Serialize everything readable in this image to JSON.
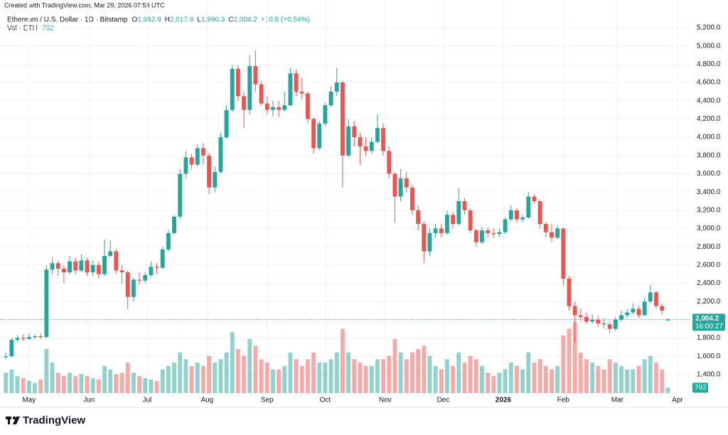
{
  "header": {
    "created": "Created with TradingView.com, Mar 29, 2026 07:59 UTC",
    "symbol": "Ethereum / U.S. Dollar · 1D · Bitstamp",
    "ohlc": [
      {
        "label": "O",
        "value": "1,992.9"
      },
      {
        "label": "H",
        "value": "2,017.9"
      },
      {
        "label": "L",
        "value": "1,990.3"
      },
      {
        "label": "C",
        "value": "2,004.2"
      }
    ],
    "change": "+10.8 (+0.54%)",
    "volume_label": "Vol · ETH"
  },
  "chart_data": {
    "type": "candlestick",
    "colors": {
      "up": "#26a69a",
      "down": "#ef5350"
    },
    "ylim": [
      1080,
      5286
    ],
    "yticks": [
      {
        "value": 1400,
        "label": "1,400.0"
      },
      {
        "value": 1600,
        "label": "1,600.0"
      },
      {
        "value": 1800,
        "label": "1,800.0"
      },
      {
        "value": 2000,
        "label": "2,000.0"
      },
      {
        "value": 2200,
        "label": "2,200.0"
      },
      {
        "value": 2400,
        "label": "2,400.0"
      },
      {
        "value": 2600,
        "label": "2,600.0"
      },
      {
        "value": 2800,
        "label": "2,800.0"
      },
      {
        "value": 3000,
        "label": "3,000.0"
      },
      {
        "value": 3200,
        "label": "3,200.0"
      },
      {
        "value": 3400,
        "label": "3,400.0"
      },
      {
        "value": 3600,
        "label": "3,600.0"
      },
      {
        "value": 3800,
        "label": "3,800.0"
      },
      {
        "value": 4000,
        "label": "4,000.0"
      },
      {
        "value": 4200,
        "label": "4,200.0"
      },
      {
        "value": 4400,
        "label": "4,400.0"
      },
      {
        "value": 4600,
        "label": "4,600.0"
      },
      {
        "value": 4800,
        "label": "4,800.0"
      },
      {
        "value": 5000,
        "label": "5,000.0"
      },
      {
        "value": 5200,
        "label": "5,200.0"
      }
    ],
    "xlim": [
      -1,
      118
    ],
    "xticks": [
      {
        "value": 4,
        "label": "May"
      },
      {
        "value": 14.33,
        "label": "Jun"
      },
      {
        "value": 24.33,
        "label": "Jul"
      },
      {
        "value": 34.67,
        "label": "Aug"
      },
      {
        "value": 45,
        "label": "Sep"
      },
      {
        "value": 55,
        "label": "Oct"
      },
      {
        "value": 65.33,
        "label": "Nov"
      },
      {
        "value": 75.33,
        "label": "Dec"
      },
      {
        "value": 85.67,
        "label": "2026",
        "bold": true
      },
      {
        "value": 96,
        "label": "Feb"
      },
      {
        "value": 105.33,
        "label": "Mar"
      },
      {
        "value": 115.67,
        "label": "Apr"
      }
    ],
    "ohlc": [
      [
        1590,
        1640,
        1570,
        1600
      ],
      [
        1600,
        1800,
        1590,
        1780
      ],
      [
        1780,
        1830,
        1760,
        1800
      ],
      [
        1800,
        1840,
        1770,
        1790
      ],
      [
        1790,
        1850,
        1780,
        1810
      ],
      [
        1810,
        1840,
        1790,
        1820
      ],
      [
        1820,
        1850,
        1790,
        1810
      ],
      [
        1810,
        2600,
        1800,
        2550
      ],
      [
        2550,
        2680,
        2500,
        2620
      ],
      [
        2620,
        2650,
        2480,
        2560
      ],
      [
        2560,
        2600,
        2400,
        2520
      ],
      [
        2520,
        2700,
        2500,
        2640
      ],
      [
        2640,
        2680,
        2500,
        2540
      ],
      [
        2540,
        2720,
        2520,
        2650
      ],
      [
        2650,
        2680,
        2480,
        2520
      ],
      [
        2520,
        2650,
        2480,
        2600
      ],
      [
        2600,
        2640,
        2450,
        2500
      ],
      [
        2500,
        2880,
        2480,
        2700
      ],
      [
        2700,
        2870,
        2680,
        2750
      ],
      [
        2750,
        2780,
        2500,
        2540
      ],
      [
        2540,
        2600,
        2400,
        2520
      ],
      [
        2520,
        2540,
        2120,
        2250
      ],
      [
        2250,
        2460,
        2200,
        2440
      ],
      [
        2440,
        2520,
        2380,
        2430
      ],
      [
        2430,
        2520,
        2400,
        2490
      ],
      [
        2490,
        2640,
        2470,
        2580
      ],
      [
        2580,
        2620,
        2500,
        2570
      ],
      [
        2570,
        2800,
        2560,
        2770
      ],
      [
        2770,
        2980,
        2750,
        2950
      ],
      [
        2950,
        3150,
        2930,
        3130
      ],
      [
        3130,
        3650,
        3100,
        3600
      ],
      [
        3600,
        3850,
        3550,
        3780
      ],
      [
        3780,
        3820,
        3650,
        3700
      ],
      [
        3700,
        3920,
        3680,
        3880
      ],
      [
        3880,
        3940,
        3700,
        3800
      ],
      [
        3800,
        3830,
        3380,
        3450
      ],
      [
        3450,
        3680,
        3400,
        3620
      ],
      [
        3620,
        4050,
        3600,
        4000
      ],
      [
        4000,
        4350,
        3980,
        4300
      ],
      [
        4300,
        4790,
        4280,
        4750
      ],
      [
        4750,
        4790,
        4400,
        4450
      ],
      [
        4450,
        4500,
        4100,
        4300
      ],
      [
        4300,
        4900,
        4250,
        4780
      ],
      [
        4780,
        4950,
        4500,
        4580
      ],
      [
        4580,
        4620,
        4350,
        4370
      ],
      [
        4370,
        4450,
        4250,
        4300
      ],
      [
        4300,
        4400,
        4230,
        4330
      ],
      [
        4330,
        4400,
        4220,
        4300
      ],
      [
        4300,
        4500,
        4280,
        4350
      ],
      [
        4350,
        4760,
        4340,
        4700
      ],
      [
        4700,
        4740,
        4450,
        4500
      ],
      [
        4500,
        4650,
        4420,
        4480
      ],
      [
        4480,
        4500,
        4150,
        4200
      ],
      [
        4200,
        4220,
        3820,
        3880
      ],
      [
        3880,
        4180,
        3860,
        4150
      ],
      [
        4150,
        4380,
        4120,
        4350
      ],
      [
        4350,
        4560,
        4330,
        4500
      ],
      [
        4500,
        4760,
        4450,
        4600
      ],
      [
        4600,
        4620,
        3450,
        3800
      ],
      [
        3800,
        4200,
        3780,
        4120
      ],
      [
        4120,
        4180,
        3900,
        4000
      ],
      [
        4000,
        4050,
        3700,
        3900
      ],
      [
        3900,
        4000,
        3800,
        3850
      ],
      [
        3850,
        4000,
        3820,
        3950
      ],
      [
        3950,
        4250,
        3930,
        4100
      ],
      [
        4100,
        4150,
        3800,
        3850
      ],
      [
        3850,
        3900,
        3550,
        3600
      ],
      [
        3600,
        3620,
        3060,
        3350
      ],
      [
        3350,
        3650,
        3300,
        3550
      ],
      [
        3550,
        3620,
        3400,
        3450
      ],
      [
        3450,
        3480,
        3150,
        3200
      ],
      [
        3200,
        3250,
        2980,
        3050
      ],
      [
        3050,
        3080,
        2620,
        2750
      ],
      [
        2750,
        3000,
        2700,
        2950
      ],
      [
        2950,
        3050,
        2900,
        3000
      ],
      [
        3000,
        3050,
        2900,
        2950
      ],
      [
        2950,
        3200,
        2930,
        3150
      ],
      [
        3150,
        3180,
        3000,
        3050
      ],
      [
        3050,
        3440,
        3030,
        3300
      ],
      [
        3300,
        3330,
        3150,
        3200
      ],
      [
        3200,
        3220,
        2950,
        2980
      ],
      [
        2980,
        3000,
        2800,
        2850
      ],
      [
        2850,
        3020,
        2830,
        2980
      ],
      [
        2980,
        3010,
        2900,
        2950
      ],
      [
        2950,
        3000,
        2900,
        2940
      ],
      [
        2940,
        3000,
        2910,
        2960
      ],
      [
        2960,
        3120,
        2940,
        3100
      ],
      [
        3100,
        3250,
        3080,
        3200
      ],
      [
        3200,
        3220,
        3060,
        3100
      ],
      [
        3100,
        3150,
        3070,
        3120
      ],
      [
        3120,
        3400,
        3110,
        3350
      ],
      [
        3350,
        3380,
        3270,
        3300
      ],
      [
        3300,
        3320,
        3000,
        3050
      ],
      [
        3050,
        3070,
        2900,
        2960
      ],
      [
        2960,
        3050,
        2850,
        2900
      ],
      [
        2900,
        3030,
        2880,
        3000
      ],
      [
        3000,
        3010,
        2380,
        2450
      ],
      [
        2450,
        2480,
        2100,
        2150
      ],
      [
        2150,
        2200,
        1750,
        2050
      ],
      [
        2050,
        2120,
        1990,
        2030
      ],
      [
        2030,
        2080,
        1950,
        1980
      ],
      [
        1980,
        2060,
        1960,
        2000
      ],
      [
        2000,
        2050,
        1920,
        1960
      ],
      [
        1960,
        2020,
        1910,
        1950
      ],
      [
        1950,
        1980,
        1850,
        1900
      ],
      [
        1900,
        2030,
        1880,
        2000
      ],
      [
        2000,
        2100,
        1980,
        2050
      ],
      [
        2050,
        2120,
        2020,
        2080
      ],
      [
        2080,
        2180,
        2060,
        2120
      ],
      [
        2120,
        2150,
        2020,
        2050
      ],
      [
        2050,
        2240,
        2040,
        2200
      ],
      [
        2200,
        2380,
        2180,
        2300
      ],
      [
        2300,
        2320,
        2120,
        2150
      ],
      [
        2150,
        2180,
        2060,
        2100
      ],
      [
        1992.9,
        2017.9,
        1990.3,
        2004.2
      ]
    ],
    "volume": [
      3000,
      3500,
      2500,
      2200,
      1800,
      1500,
      2000,
      6500,
      4500,
      3000,
      2500,
      3000,
      2500,
      2800,
      2500,
      2200,
      2000,
      4000,
      3500,
      2800,
      3000,
      4500,
      3000,
      2500,
      2200,
      2000,
      1800,
      3500,
      4000,
      4500,
      6000,
      5000,
      4000,
      4500,
      4000,
      5500,
      4500,
      5000,
      6000,
      9000,
      6500,
      5500,
      8000,
      7000,
      5000,
      4500,
      3500,
      3500,
      4000,
      6000,
      5000,
      4000,
      5000,
      6000,
      4500,
      4500,
      5000,
      6000,
      9500,
      6000,
      5000,
      4500,
      4000,
      4000,
      5000,
      5000,
      5500,
      8000,
      6000,
      5000,
      6000,
      6500,
      7000,
      5500,
      4000,
      3500,
      5000,
      4000,
      6000,
      4500,
      5500,
      5000,
      4000,
      3000,
      2500,
      3000,
      3500,
      4500,
      4000,
      3500,
      6000,
      4500,
      5000,
      4000,
      3500,
      4000,
      8500,
      9500,
      10500,
      6000,
      5000,
      4500,
      4000,
      3500,
      5000,
      4500,
      4000,
      3500,
      3500,
      4000,
      5000,
      5500,
      4500,
      3500,
      792
    ],
    "last_price": {
      "value": 2004.2,
      "label": "2,004.2"
    },
    "countdown": "16:00:27"
  },
  "footer": {
    "logo": "TradingView"
  }
}
